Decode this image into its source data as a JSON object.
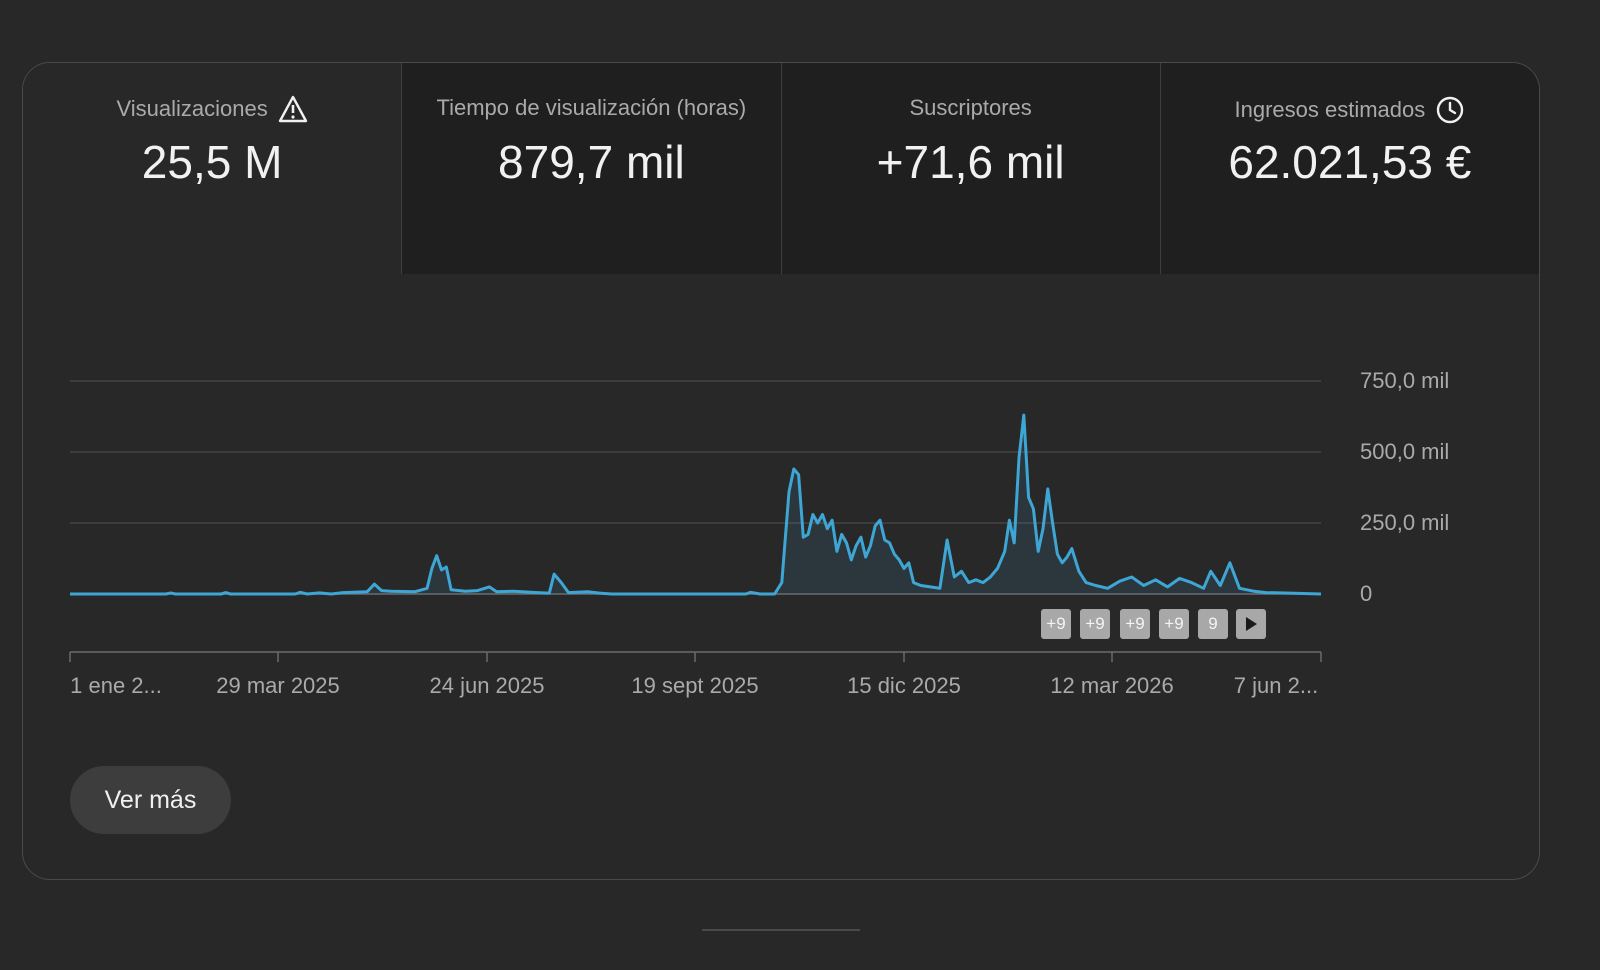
{
  "tabs": [
    {
      "label": "Visualizaciones",
      "value": "25,5 M",
      "icon": "warning-icon",
      "active": true
    },
    {
      "label": "Tiempo de visualización (horas)",
      "value": "879,7 mil",
      "icon": "",
      "active": false
    },
    {
      "label": "Suscriptores",
      "value": "+71,6 mil",
      "icon": "",
      "active": false
    },
    {
      "label": "Ingresos estimados",
      "value": "62.021,53 €",
      "icon": "clock-icon",
      "active": false
    }
  ],
  "chart_data": {
    "type": "area",
    "ylim": [
      0,
      750000
    ],
    "y_ticks": [
      "750,0 mil",
      "500,0 mil",
      "250,0 mil",
      "0"
    ],
    "y_tick_values": [
      750000,
      500000,
      250000,
      0
    ],
    "x_ticks": [
      "1 ene 2...",
      "29 mar 2025",
      "24 jun 2025",
      "19 sept 2025",
      "15 dic 2025",
      "12 mar 2026",
      "7 jun 2..."
    ],
    "x_range": [
      "2025-01-01",
      "2026-06-07"
    ],
    "series_color": "#3ea6d5",
    "series": [
      {
        "values_points": [
          [
            "2025-01-01",
            0
          ],
          [
            "2025-02-10",
            0
          ],
          [
            "2025-02-12",
            4000
          ],
          [
            "2025-02-14",
            0
          ],
          [
            "2025-03-05",
            0
          ],
          [
            "2025-03-07",
            5000
          ],
          [
            "2025-03-09",
            0
          ],
          [
            "2025-04-05",
            0
          ],
          [
            "2025-04-07",
            6000
          ],
          [
            "2025-04-10",
            0
          ],
          [
            "2025-04-15",
            4000
          ],
          [
            "2025-04-20",
            0
          ],
          [
            "2025-04-25",
            5000
          ],
          [
            "2025-05-05",
            8000
          ],
          [
            "2025-05-08",
            35000
          ],
          [
            "2025-05-11",
            12000
          ],
          [
            "2025-05-15",
            10000
          ],
          [
            "2025-05-25",
            8000
          ],
          [
            "2025-05-30",
            20000
          ],
          [
            "2025-06-01",
            90000
          ],
          [
            "2025-06-03",
            135000
          ],
          [
            "2025-06-05",
            85000
          ],
          [
            "2025-06-07",
            95000
          ],
          [
            "2025-06-09",
            15000
          ],
          [
            "2025-06-15",
            10000
          ],
          [
            "2025-06-20",
            12000
          ],
          [
            "2025-06-25",
            25000
          ],
          [
            "2025-06-28",
            8000
          ],
          [
            "2025-07-05",
            10000
          ],
          [
            "2025-07-15",
            5000
          ],
          [
            "2025-07-20",
            3000
          ],
          [
            "2025-07-22",
            70000
          ],
          [
            "2025-07-25",
            40000
          ],
          [
            "2025-07-28",
            5000
          ],
          [
            "2025-08-05",
            8000
          ],
          [
            "2025-08-10",
            3000
          ],
          [
            "2025-08-15",
            0
          ],
          [
            "2025-10-10",
            0
          ],
          [
            "2025-10-12",
            6000
          ],
          [
            "2025-10-16",
            0
          ],
          [
            "2025-10-22",
            0
          ],
          [
            "2025-10-25",
            40000
          ],
          [
            "2025-10-28",
            360000
          ],
          [
            "2025-10-30",
            440000
          ],
          [
            "2025-11-01",
            420000
          ],
          [
            "2025-11-03",
            200000
          ],
          [
            "2025-11-05",
            210000
          ],
          [
            "2025-11-07",
            280000
          ],
          [
            "2025-11-09",
            250000
          ],
          [
            "2025-11-11",
            280000
          ],
          [
            "2025-11-13",
            230000
          ],
          [
            "2025-11-15",
            260000
          ],
          [
            "2025-11-17",
            150000
          ],
          [
            "2025-11-19",
            210000
          ],
          [
            "2025-11-21",
            180000
          ],
          [
            "2025-11-23",
            120000
          ],
          [
            "2025-11-25",
            170000
          ],
          [
            "2025-11-27",
            200000
          ],
          [
            "2025-11-29",
            130000
          ],
          [
            "2025-12-01",
            170000
          ],
          [
            "2025-12-03",
            240000
          ],
          [
            "2025-12-05",
            260000
          ],
          [
            "2025-12-07",
            190000
          ],
          [
            "2025-12-09",
            180000
          ],
          [
            "2025-12-11",
            140000
          ],
          [
            "2025-12-13",
            120000
          ],
          [
            "2025-12-15",
            90000
          ],
          [
            "2025-12-17",
            110000
          ],
          [
            "2025-12-19",
            40000
          ],
          [
            "2025-12-22",
            30000
          ],
          [
            "2025-12-26",
            25000
          ],
          [
            "2025-12-30",
            20000
          ],
          [
            "2026-01-02",
            190000
          ],
          [
            "2026-01-05",
            60000
          ],
          [
            "2026-01-08",
            80000
          ],
          [
            "2026-01-11",
            40000
          ],
          [
            "2026-01-14",
            50000
          ],
          [
            "2026-01-17",
            40000
          ],
          [
            "2026-01-20",
            60000
          ],
          [
            "2026-01-23",
            90000
          ],
          [
            "2026-01-26",
            150000
          ],
          [
            "2026-01-28",
            260000
          ],
          [
            "2026-01-30",
            180000
          ],
          [
            "2026-02-01",
            480000
          ],
          [
            "2026-02-03",
            630000
          ],
          [
            "2026-02-05",
            340000
          ],
          [
            "2026-02-07",
            300000
          ],
          [
            "2026-02-09",
            150000
          ],
          [
            "2026-02-11",
            230000
          ],
          [
            "2026-02-13",
            370000
          ],
          [
            "2026-02-15",
            250000
          ],
          [
            "2026-02-17",
            140000
          ],
          [
            "2026-02-19",
            110000
          ],
          [
            "2026-02-21",
            130000
          ],
          [
            "2026-02-23",
            160000
          ],
          [
            "2026-02-26",
            80000
          ],
          [
            "2026-03-01",
            40000
          ],
          [
            "2026-03-05",
            30000
          ],
          [
            "2026-03-10",
            20000
          ],
          [
            "2026-03-15",
            45000
          ],
          [
            "2026-03-20",
            60000
          ],
          [
            "2026-03-25",
            30000
          ],
          [
            "2026-03-30",
            50000
          ],
          [
            "2026-04-04",
            25000
          ],
          [
            "2026-04-09",
            55000
          ],
          [
            "2026-04-14",
            40000
          ],
          [
            "2026-04-19",
            20000
          ],
          [
            "2026-04-22",
            80000
          ],
          [
            "2026-04-26",
            30000
          ],
          [
            "2026-04-30",
            110000
          ],
          [
            "2026-05-04",
            20000
          ],
          [
            "2026-05-10",
            10000
          ],
          [
            "2026-05-15",
            5000
          ],
          [
            "2026-05-25",
            3000
          ],
          [
            "2026-06-07",
            0
          ]
        ]
      }
    ]
  },
  "annotations": [
    "+9",
    "+9",
    "+9",
    "+9",
    "9"
  ],
  "annotations_play_icon": "play-icon",
  "more_button": "Ver más"
}
